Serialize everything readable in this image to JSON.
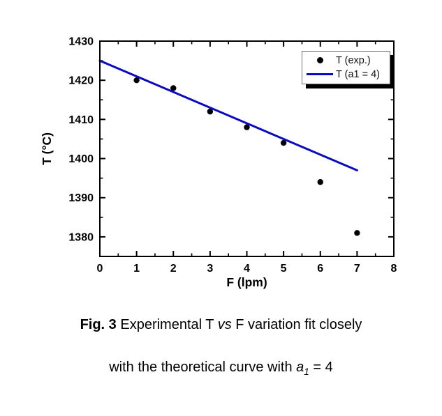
{
  "chart_data": {
    "type": "scatter",
    "title": "",
    "xlabel": "F (lpm)",
    "ylabel": "T (°C)",
    "xlim": [
      0,
      8
    ],
    "ylim": [
      1375,
      1430
    ],
    "x_major_ticks": [
      0,
      1,
      2,
      3,
      4,
      5,
      6,
      7,
      8
    ],
    "x_minor_step": 0.5,
    "y_major_ticks": [
      1380,
      1390,
      1400,
      1410,
      1420,
      1430
    ],
    "y_minor_step": 5,
    "grid": false,
    "legend_position": "top-right",
    "series": [
      {
        "name": "T (exp.)",
        "type": "scatter",
        "color": "#000000",
        "points": [
          [
            1,
            1420
          ],
          [
            2,
            1418
          ],
          [
            3,
            1412
          ],
          [
            4,
            1408
          ],
          [
            5,
            1404
          ],
          [
            6,
            1394
          ],
          [
            7,
            1381
          ]
        ]
      },
      {
        "name": "T (a1 = 4)",
        "type": "line",
        "color": "#0a0ac0",
        "points": [
          [
            0,
            1425
          ],
          [
            7,
            1397
          ]
        ]
      }
    ]
  },
  "caption": {
    "line1_parts": [
      {
        "text": "Fig. 3",
        "bold": true
      },
      {
        "text": " Experimental T "
      },
      {
        "text": "vs",
        "italic": true
      },
      {
        "text": " F variation fit closely"
      }
    ],
    "line2_parts": [
      {
        "text": "with the theoretical curve with "
      },
      {
        "text": "a",
        "italic": true
      },
      {
        "text": "1",
        "italic": true,
        "sub": true
      },
      {
        "text": " = 4"
      }
    ]
  },
  "colors": {
    "line_blue": "#0a0ac0",
    "marker_black": "#000000",
    "background": "#ffffff"
  }
}
